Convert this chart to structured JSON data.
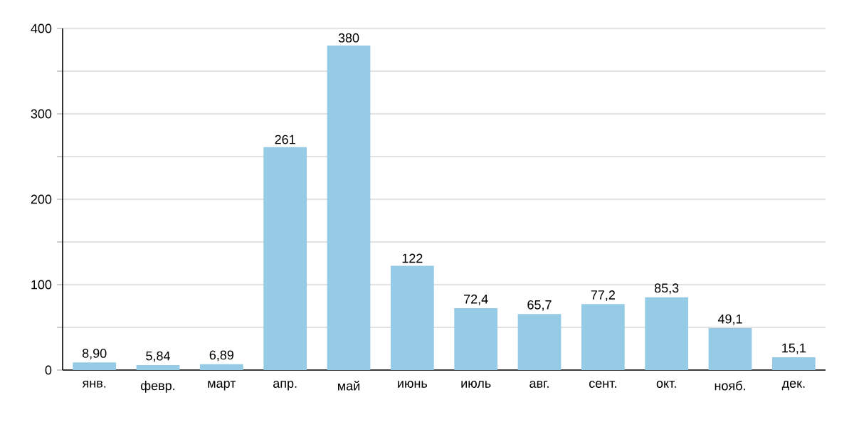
{
  "chart_data": {
    "type": "bar",
    "categories": [
      "янв.",
      "февр.",
      "март",
      "апр.",
      "май",
      "июнь",
      "июль",
      "авг.",
      "сент.",
      "окт.",
      "нояб.",
      "дек."
    ],
    "values": [
      8.9,
      5.84,
      6.89,
      261,
      380,
      122,
      72.4,
      65.7,
      77.2,
      85.3,
      49.1,
      15.1
    ],
    "value_labels": [
      "8,90",
      "5,84",
      "6,89",
      "261",
      "380",
      "122",
      "72,4",
      "65,7",
      "77,2",
      "85,3",
      "49,1",
      "15,1"
    ],
    "color": "#95cbe4",
    "ylim": [
      0,
      400
    ],
    "yticks": [
      0,
      {
        "value": 50,
        "label": null
      },
      100,
      {
        "value": 150,
        "label": null
      },
      200,
      {
        "value": 250,
        "label": null
      },
      300,
      {
        "value": 350,
        "label": null
      },
      400
    ],
    "grid": "y"
  }
}
